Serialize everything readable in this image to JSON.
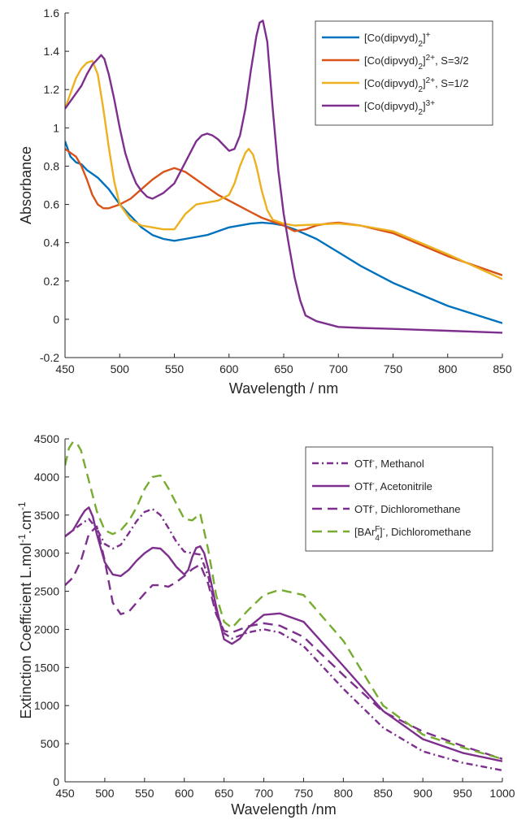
{
  "chart_data": [
    {
      "type": "line",
      "xlabel": "Wavelength / nm",
      "ylabel": "Absorbance",
      "xlim": [
        450,
        850
      ],
      "ylim": [
        -0.2,
        1.6
      ],
      "xticks": [
        450,
        500,
        550,
        600,
        650,
        700,
        750,
        800,
        850
      ],
      "yticks": [
        -0.2,
        0,
        0.2,
        0.4,
        0.6,
        0.8,
        1,
        1.2,
        1.4,
        1.6
      ],
      "ytick_labels": [
        "-0.2",
        "0",
        "0.2",
        "0.4",
        "0.6",
        "0.8",
        "1",
        "1.2",
        "1.4",
        "1.6"
      ],
      "legend_position": "top-right",
      "series": [
        {
          "name": "[Co(dipvyd)2]+",
          "legend": {
            "base": "[Co(dipvyd)",
            "sub": "2",
            "mid": "]",
            "sup": "+",
            "tail": ""
          },
          "color": "#0072BD",
          "dash": "solid",
          "x": [
            450,
            455,
            460,
            465,
            470,
            480,
            490,
            500,
            510,
            520,
            530,
            540,
            550,
            560,
            580,
            600,
            620,
            630,
            640,
            650,
            660,
            680,
            700,
            720,
            750,
            800,
            850
          ],
          "y": [
            0.93,
            0.85,
            0.82,
            0.81,
            0.78,
            0.74,
            0.68,
            0.6,
            0.54,
            0.48,
            0.44,
            0.42,
            0.41,
            0.42,
            0.44,
            0.48,
            0.5,
            0.505,
            0.5,
            0.49,
            0.47,
            0.42,
            0.35,
            0.28,
            0.19,
            0.07,
            -0.02
          ]
        },
        {
          "name": "[Co(dipvyd)2]2+, S=3/2",
          "legend": {
            "base": "[Co(dipvyd)",
            "sub": "2",
            "mid": "]",
            "sup": "2+",
            "tail": ", S=3/2"
          },
          "color": "#D95319",
          "dash": "solid",
          "x": [
            450,
            455,
            460,
            465,
            470,
            475,
            480,
            485,
            490,
            500,
            510,
            520,
            530,
            540,
            550,
            560,
            570,
            580,
            590,
            600,
            610,
            620,
            630,
            640,
            650,
            660,
            670,
            680,
            690,
            700,
            720,
            750,
            800,
            850
          ],
          "y": [
            0.89,
            0.87,
            0.85,
            0.8,
            0.73,
            0.65,
            0.6,
            0.58,
            0.58,
            0.6,
            0.63,
            0.68,
            0.73,
            0.77,
            0.79,
            0.77,
            0.73,
            0.69,
            0.65,
            0.62,
            0.59,
            0.56,
            0.53,
            0.51,
            0.49,
            0.46,
            0.47,
            0.49,
            0.5,
            0.505,
            0.49,
            0.45,
            0.33,
            0.23
          ]
        },
        {
          "name": "[Co(dipvyd)2]2+, S=1/2",
          "legend": {
            "base": "[Co(dipvyd)",
            "sub": "2",
            "mid": "]",
            "sup": "2+",
            "tail": ", S=1/2"
          },
          "color": "#EDB120",
          "dash": "solid",
          "x": [
            450,
            455,
            460,
            465,
            470,
            475,
            480,
            485,
            490,
            495,
            500,
            510,
            520,
            530,
            540,
            550,
            560,
            570,
            580,
            590,
            600,
            605,
            610,
            615,
            618,
            622,
            625,
            630,
            635,
            640,
            650,
            660,
            680,
            700,
            720,
            750,
            800,
            850
          ],
          "y": [
            1.1,
            1.18,
            1.26,
            1.31,
            1.34,
            1.35,
            1.28,
            1.1,
            0.9,
            0.72,
            0.6,
            0.52,
            0.49,
            0.48,
            0.47,
            0.47,
            0.55,
            0.6,
            0.61,
            0.62,
            0.65,
            0.71,
            0.8,
            0.87,
            0.89,
            0.86,
            0.8,
            0.67,
            0.57,
            0.52,
            0.5,
            0.49,
            0.495,
            0.5,
            0.49,
            0.46,
            0.34,
            0.21
          ]
        },
        {
          "name": "[Co(dipvyd)2]3+",
          "legend": {
            "base": "[Co(dipvyd)",
            "sub": "2",
            "mid": "]",
            "sup": "3+",
            "tail": ""
          },
          "color": "#7E2F8E",
          "dash": "solid",
          "x": [
            450,
            455,
            460,
            465,
            470,
            475,
            480,
            483,
            486,
            490,
            495,
            500,
            505,
            510,
            515,
            520,
            525,
            530,
            540,
            550,
            560,
            570,
            575,
            580,
            585,
            590,
            595,
            600,
            605,
            610,
            615,
            620,
            625,
            628,
            631,
            635,
            640,
            645,
            650,
            655,
            660,
            665,
            670,
            680,
            700,
            720,
            750,
            800,
            850
          ],
          "y": [
            1.1,
            1.14,
            1.18,
            1.22,
            1.28,
            1.33,
            1.36,
            1.38,
            1.36,
            1.28,
            1.15,
            1.0,
            0.87,
            0.78,
            0.71,
            0.67,
            0.64,
            0.63,
            0.66,
            0.71,
            0.82,
            0.93,
            0.96,
            0.97,
            0.96,
            0.94,
            0.91,
            0.88,
            0.89,
            0.96,
            1.1,
            1.3,
            1.48,
            1.55,
            1.56,
            1.45,
            1.1,
            0.78,
            0.55,
            0.38,
            0.22,
            0.1,
            0.02,
            -0.01,
            -0.04,
            -0.045,
            -0.05,
            -0.06,
            -0.07
          ]
        }
      ]
    },
    {
      "type": "line",
      "xlabel": "Wavelength /nm",
      "ylabel": "Extinction Coefficient L.mol⁻¹.cm⁻¹",
      "ylabel_parts": {
        "a": "Extinction Coefficient L.mol",
        "s1": "-1",
        "b": ".cm",
        "s2": "-1"
      },
      "xlim": [
        450,
        1000
      ],
      "ylim": [
        0,
        4500
      ],
      "xticks": [
        450,
        500,
        550,
        600,
        650,
        700,
        750,
        800,
        850,
        900,
        950,
        1000
      ],
      "yticks": [
        0,
        500,
        1000,
        1500,
        2000,
        2500,
        3000,
        3500,
        4000,
        4500
      ],
      "ytick_labels": [
        "0",
        "500",
        "1000",
        "1500",
        "2000",
        "2500",
        "3000",
        "3500",
        "4000",
        "4500"
      ],
      "legend_position": "top-right",
      "series": [
        {
          "name": "OTf-, Methanol",
          "legend": {
            "base": "OTf",
            "sub": "",
            "mid": "",
            "sup": "-",
            "tail": ", Methanol"
          },
          "color": "#7E2F8E",
          "dash": "8 4 2 4",
          "x": [
            450,
            460,
            470,
            480,
            490,
            500,
            510,
            520,
            530,
            540,
            550,
            560,
            570,
            580,
            590,
            600,
            610,
            620,
            630,
            640,
            650,
            660,
            680,
            700,
            720,
            750,
            800,
            850,
            900,
            950,
            1000
          ],
          "y": [
            3220,
            3300,
            3380,
            3450,
            3320,
            3120,
            3060,
            3110,
            3260,
            3420,
            3540,
            3580,
            3500,
            3330,
            3150,
            3020,
            3000,
            2980,
            2700,
            2250,
            1950,
            1880,
            1960,
            2000,
            1960,
            1780,
            1220,
            710,
            400,
            250,
            150
          ]
        },
        {
          "name": "OTf-, Acetonitrile",
          "legend": {
            "base": "OTf",
            "sub": "",
            "mid": "",
            "sup": "-",
            "tail": ", Acetonitrile"
          },
          "color": "#7E2F8E",
          "dash": "solid",
          "x": [
            450,
            460,
            470,
            475,
            480,
            485,
            490,
            500,
            510,
            520,
            530,
            540,
            550,
            560,
            570,
            580,
            590,
            600,
            605,
            610,
            615,
            620,
            625,
            630,
            640,
            650,
            660,
            670,
            680,
            700,
            720,
            750,
            800,
            850,
            900,
            950,
            1000
          ],
          "y": [
            3220,
            3300,
            3480,
            3560,
            3600,
            3480,
            3250,
            2880,
            2720,
            2700,
            2780,
            2900,
            3000,
            3070,
            3060,
            2960,
            2820,
            2720,
            2780,
            2950,
            3070,
            3090,
            3000,
            2800,
            2300,
            1870,
            1810,
            1880,
            2020,
            2190,
            2210,
            2100,
            1520,
            930,
            560,
            380,
            270
          ]
        },
        {
          "name": "OTf-, Dichloromethane",
          "legend": {
            "base": "OTf",
            "sub": "",
            "mid": "",
            "sup": "-",
            "tail": ", Dichloromethane"
          },
          "color": "#7E2F8E",
          "dash": "12 7",
          "x": [
            450,
            460,
            470,
            480,
            490,
            500,
            510,
            520,
            530,
            540,
            550,
            560,
            570,
            580,
            590,
            600,
            610,
            620,
            630,
            640,
            650,
            660,
            680,
            700,
            720,
            750,
            800,
            850,
            900,
            950,
            1000
          ],
          "y": [
            2580,
            2680,
            2900,
            3250,
            3350,
            2900,
            2350,
            2200,
            2230,
            2350,
            2470,
            2580,
            2580,
            2560,
            2620,
            2700,
            2790,
            2850,
            2600,
            2200,
            1980,
            1960,
            2040,
            2080,
            2050,
            1900,
            1400,
            920,
            660,
            470,
            300
          ]
        },
        {
          "name": "[BArF4]-, Dichloromethane",
          "legend": {
            "base": "[BAr",
            "sub": "4",
            "subsup": "F",
            "mid": "]",
            "sup": "-",
            "tail": ", Dichloromethane"
          },
          "color": "#77AC30",
          "dash": "12 7",
          "x": [
            450,
            455,
            460,
            465,
            470,
            480,
            490,
            500,
            510,
            520,
            530,
            540,
            550,
            560,
            570,
            580,
            590,
            600,
            610,
            620,
            630,
            640,
            650,
            660,
            680,
            700,
            720,
            750,
            800,
            850,
            900,
            950,
            1000
          ],
          "y": [
            4150,
            4380,
            4460,
            4440,
            4350,
            3950,
            3550,
            3300,
            3250,
            3300,
            3420,
            3600,
            3840,
            4000,
            4020,
            3850,
            3650,
            3450,
            3430,
            3520,
            3050,
            2450,
            2100,
            2020,
            2250,
            2450,
            2520,
            2450,
            1850,
            1000,
            620,
            450,
            300
          ]
        }
      ]
    }
  ]
}
